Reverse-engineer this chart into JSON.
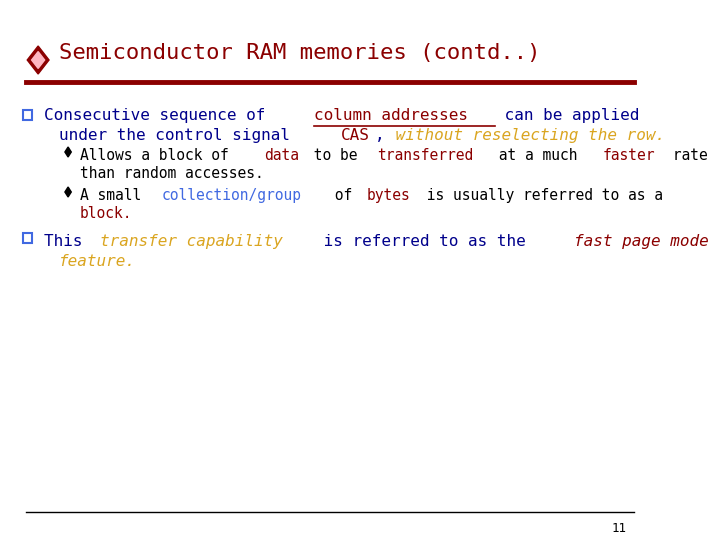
{
  "title": "Semiconductor RAM memories (contd..)",
  "title_color": "#8B0000",
  "diamond_color_outer": "#8B0000",
  "diamond_color_inner": "#FFB6C1",
  "separator_color": "#8B0000",
  "bg_color": "#FFFFFF",
  "page_number": "11",
  "bullet1_parts": [
    {
      "text": "Consecutive sequence of ",
      "color": "#00008B",
      "bold": false,
      "italic": false,
      "font": "monospace"
    },
    {
      "text": "column addresses",
      "color": "#8B0000",
      "bold": false,
      "italic": false,
      "underline": true,
      "font": "monospace"
    },
    {
      "text": " can be applied",
      "color": "#00008B",
      "bold": false,
      "italic": false,
      "font": "monospace"
    }
  ],
  "bullet1_line2_parts": [
    {
      "text": "under the control signal ",
      "color": "#00008B",
      "bold": false,
      "italic": false,
      "font": "monospace"
    },
    {
      "text": "CAS",
      "color": "#8B0000",
      "bold": false,
      "italic": false,
      "font": "monospace"
    },
    {
      "text": ",",
      "color": "#00008B",
      "bold": false,
      "italic": false,
      "font": "monospace"
    },
    {
      "text": " without reselecting the row.",
      "color": "#DAA520",
      "bold": false,
      "italic": true,
      "font": "monospace"
    }
  ],
  "sub1_parts": [
    {
      "text": "Allows a block of ",
      "color": "#000000",
      "bold": false,
      "italic": false,
      "font": "monospace"
    },
    {
      "text": "data",
      "color": "#8B0000",
      "bold": false,
      "italic": false,
      "font": "monospace"
    },
    {
      "text": " to be ",
      "color": "#000000",
      "bold": false,
      "italic": false,
      "font": "monospace"
    },
    {
      "text": "transferred",
      "color": "#8B0000",
      "bold": false,
      "italic": false,
      "font": "monospace"
    },
    {
      "text": " at a much ",
      "color": "#000000",
      "bold": false,
      "italic": false,
      "font": "monospace"
    },
    {
      "text": "faster",
      "color": "#8B0000",
      "bold": false,
      "italic": false,
      "font": "monospace"
    },
    {
      "text": " rate",
      "color": "#000000",
      "bold": false,
      "italic": false,
      "font": "monospace"
    }
  ],
  "sub1_line2": "than random accesses.",
  "sub2_parts": [
    {
      "text": "A small ",
      "color": "#000000",
      "bold": false,
      "italic": false,
      "font": "monospace"
    },
    {
      "text": "collection/group",
      "color": "#4169E1",
      "bold": false,
      "italic": false,
      "font": "monospace"
    },
    {
      "text": " of ",
      "color": "#000000",
      "bold": false,
      "italic": false,
      "font": "monospace"
    },
    {
      "text": "bytes",
      "color": "#8B0000",
      "bold": false,
      "italic": false,
      "font": "monospace"
    },
    {
      "text": " is usually referred to as a",
      "color": "#000000",
      "bold": false,
      "italic": false,
      "font": "monospace"
    }
  ],
  "sub2_line2_parts": [
    {
      "text": "block.",
      "color": "#8B0000",
      "bold": false,
      "italic": false,
      "font": "monospace"
    }
  ],
  "bullet2_parts": [
    {
      "text": "This ",
      "color": "#00008B",
      "bold": false,
      "italic": false,
      "font": "monospace"
    },
    {
      "text": "transfer capability",
      "color": "#DAA520",
      "bold": false,
      "italic": true,
      "font": "monospace"
    },
    {
      "text": " is referred to as the ",
      "color": "#00008B",
      "bold": false,
      "italic": false,
      "font": "monospace"
    },
    {
      "text": "fast page mode",
      "color": "#8B0000",
      "bold": false,
      "italic": true,
      "font": "monospace"
    }
  ],
  "bullet2_line2_parts": [
    {
      "text": "feature.",
      "color": "#DAA520",
      "bold": false,
      "italic": true,
      "font": "monospace"
    }
  ]
}
